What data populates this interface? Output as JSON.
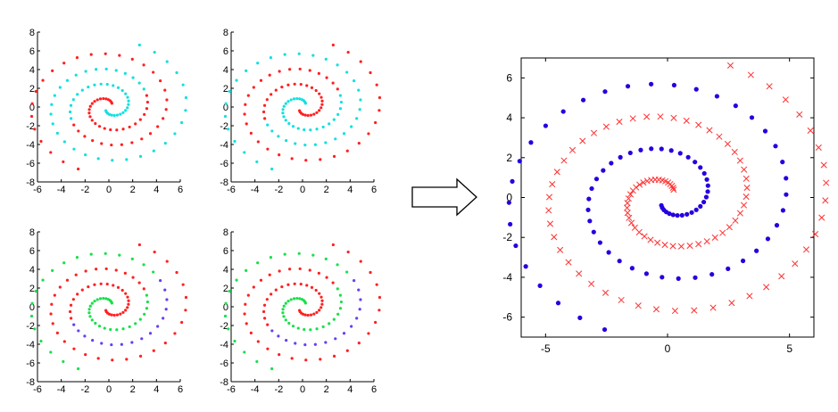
{
  "colors": {
    "red": "#ff2020",
    "cyan": "#12e0e0",
    "green": "#18e04a",
    "blue_small": "#6a3ef0",
    "blue_large": "#2400e0",
    "red_large": "#ff3030"
  },
  "arrow": {
    "icon": "right-arrow-icon"
  },
  "chart_data": [
    {
      "type": "scatter",
      "id": "small-top-left",
      "xlim": [
        -6,
        6
      ],
      "ylim": [
        -8,
        8
      ],
      "xticks": [
        "-6",
        "-4",
        "-2",
        "0",
        "2",
        "4",
        "6"
      ],
      "yticks": [
        "8",
        "6",
        "4",
        "2",
        "0",
        "-2",
        "-4",
        "-6",
        "-8"
      ],
      "series": [
        {
          "color": "cyan",
          "marker": "dot",
          "pattern": "a_outer_b_inner"
        },
        {
          "color": "red",
          "marker": "dot",
          "pattern": "b_outer_a_inner"
        }
      ]
    },
    {
      "type": "scatter",
      "id": "small-top-right",
      "xlim": [
        -6,
        6
      ],
      "ylim": [
        -8,
        8
      ],
      "xticks": [
        "-6",
        "-4",
        "-2",
        "0",
        "2",
        "4",
        "6"
      ],
      "yticks": [
        "8",
        "6",
        "4",
        "2",
        "0",
        "-2",
        "-4",
        "-6",
        "-8"
      ],
      "series": [
        {
          "color": "red",
          "marker": "dot",
          "pattern": "a_outer_b_inner"
        },
        {
          "color": "cyan",
          "marker": "dot",
          "pattern": "b_outer_a_inner"
        }
      ]
    },
    {
      "type": "scatter",
      "id": "small-bottom-left",
      "xlim": [
        -6,
        6
      ],
      "ylim": [
        -8,
        8
      ],
      "xticks": [
        "-6",
        "-4",
        "-2",
        "0",
        "2",
        "4",
        "6"
      ],
      "yticks": [
        "8",
        "6",
        "4",
        "2",
        "0",
        "-2",
        "-4",
        "-6",
        "-8"
      ],
      "series": [
        {
          "color": "red",
          "marker": "dot",
          "pattern": "three_way_1"
        },
        {
          "color": "green",
          "marker": "dot",
          "pattern": "three_way_2"
        },
        {
          "color": "blue_small",
          "marker": "dot",
          "pattern": "three_way_3"
        }
      ]
    },
    {
      "type": "scatter",
      "id": "small-bottom-right",
      "xlim": [
        -6,
        6
      ],
      "ylim": [
        -8,
        8
      ],
      "xticks": [
        "-6",
        "-4",
        "-2",
        "0",
        "2",
        "4",
        "6"
      ],
      "yticks": [
        "8",
        "6",
        "4",
        "2",
        "0",
        "-2",
        "-4",
        "-6",
        "-8"
      ],
      "series": [
        {
          "color": "red",
          "marker": "dot",
          "pattern": "three_way_1b"
        },
        {
          "color": "green",
          "marker": "dot",
          "pattern": "three_way_2b"
        },
        {
          "color": "blue_small",
          "marker": "dot",
          "pattern": "three_way_3b"
        }
      ]
    },
    {
      "type": "scatter",
      "id": "large",
      "xlim": [
        -6,
        6
      ],
      "ylim": [
        -7,
        7
      ],
      "xticks": [
        "-5",
        "0",
        "5"
      ],
      "yticks": [
        "6",
        "4",
        "2",
        "0",
        "-2",
        "-4",
        "-6"
      ],
      "grid": false,
      "series": [
        {
          "color": "red_large",
          "marker": "x",
          "spiral": "A"
        },
        {
          "color": "blue_large",
          "marker": "dot",
          "spiral": "B"
        }
      ]
    }
  ]
}
